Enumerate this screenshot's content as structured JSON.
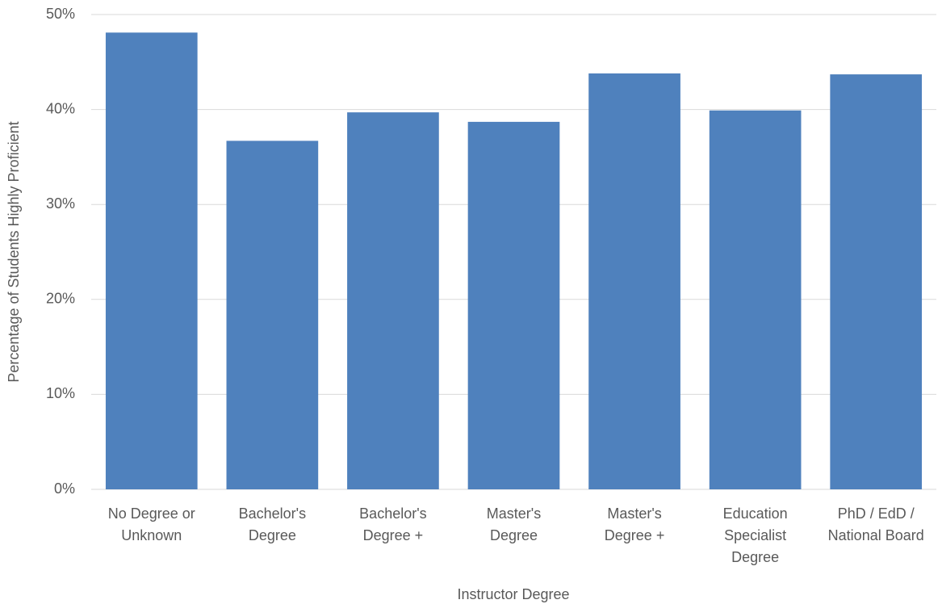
{
  "chart_data": {
    "type": "bar",
    "x_label": "Instructor Degree",
    "y_label": "Percentage of Students Highly Proficient",
    "categories": [
      [
        "No Degree or",
        "Unknown"
      ],
      [
        "Bachelor's",
        "Degree"
      ],
      [
        "Bachelor's",
        "Degree +"
      ],
      [
        "Master's",
        "Degree"
      ],
      [
        "Master's",
        "Degree +"
      ],
      [
        "Education",
        "Specialist",
        "Degree"
      ],
      [
        "PhD / EdD /",
        "National Board"
      ]
    ],
    "values": [
      48.1,
      36.7,
      39.7,
      38.7,
      43.8,
      39.9,
      43.7
    ],
    "color": "#4f81bd",
    "ylim": [
      0,
      50
    ],
    "yticks": [
      {
        "value": 0,
        "label": "0%"
      },
      {
        "value": 10,
        "label": "10%"
      },
      {
        "value": 20,
        "label": "20%"
      },
      {
        "value": 30,
        "label": "30%"
      },
      {
        "value": 40,
        "label": "40%"
      },
      {
        "value": 50,
        "label": "50%"
      }
    ],
    "grid": true
  }
}
